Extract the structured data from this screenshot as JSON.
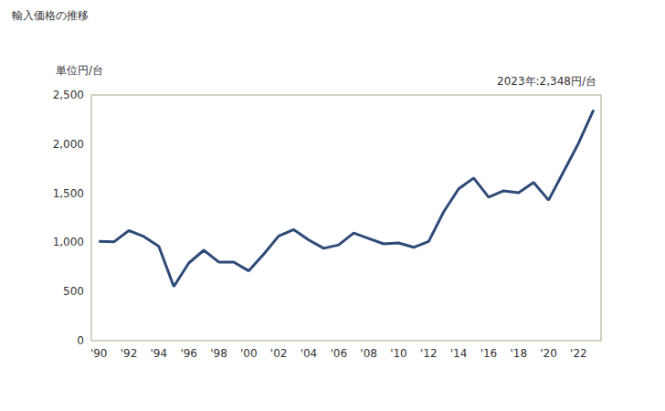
{
  "chart_data": {
    "type": "line",
    "title": "輸入価格の推移",
    "y_label": "単位円/台",
    "annotation": "2023年:2,348円/台",
    "categories": [
      "'90",
      null,
      "'92",
      null,
      "'94",
      null,
      "'96",
      null,
      "'98",
      null,
      "'00",
      null,
      "'02",
      null,
      "'04",
      null,
      "'06",
      null,
      "'08",
      null,
      "'10",
      null,
      "'12",
      null,
      "'14",
      null,
      "'16",
      null,
      "'18",
      null,
      "'20",
      null,
      "'22",
      null
    ],
    "values": [
      1010,
      1005,
      1120,
      1060,
      960,
      550,
      790,
      920,
      800,
      800,
      710,
      880,
      1065,
      1130,
      1025,
      940,
      975,
      1095,
      1040,
      985,
      995,
      950,
      1010,
      1310,
      1545,
      1655,
      1460,
      1525,
      1505,
      1610,
      1430,
      1720,
      2010,
      2348
    ],
    "color": "#2e4a78",
    "ylim": [
      0,
      2500
    ],
    "yticks": [
      0,
      500,
      {
        "value": 1000,
        "label": "1,000"
      },
      {
        "value": 1500,
        "label": "1,500"
      },
      {
        "value": 2000,
        "label": "2,000"
      },
      {
        "value": 2500,
        "label": "2,500"
      }
    ],
    "grid": false
  }
}
